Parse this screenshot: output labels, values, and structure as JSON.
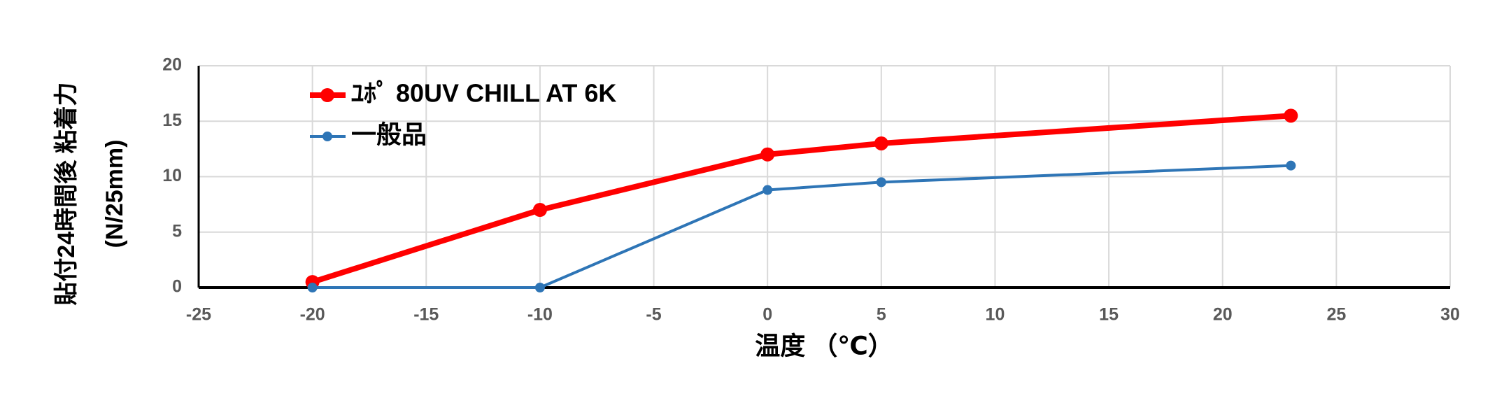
{
  "chart_data": {
    "type": "line",
    "xlabel": "温度 （℃）",
    "ylabel": [
      "貼付24時間後 粘着力",
      "(N/25mm)"
    ],
    "series": [
      {
        "name": "ﾕﾎﾟ 80UV CHILL AT 6K",
        "color": "#ff0000",
        "x": [
          -20,
          -10,
          0,
          5,
          23
        ],
        "values": [
          0.5,
          7,
          12,
          13,
          15.5
        ]
      },
      {
        "name": "一般品",
        "color": "#2e75b6",
        "x": [
          -20,
          -10,
          0,
          5,
          23
        ],
        "values": [
          0,
          0,
          8.8,
          9.5,
          11
        ]
      }
    ],
    "xlim": [
      -25,
      30
    ],
    "xticks": [
      -25,
      -20,
      -15,
      -10,
      -5,
      0,
      5,
      10,
      15,
      20,
      25,
      30
    ],
    "ylim": [
      0,
      20
    ],
    "yticks": [
      0,
      5,
      10,
      15,
      20
    ],
    "grid": true,
    "legend": "upper-left"
  }
}
